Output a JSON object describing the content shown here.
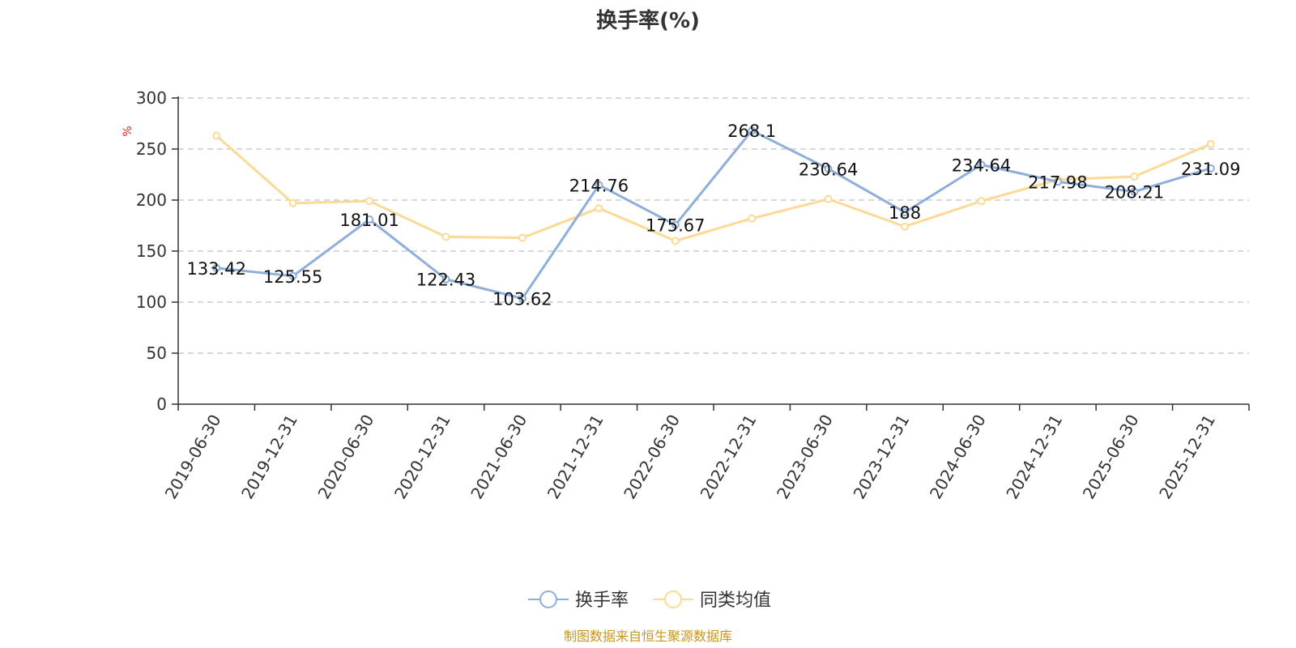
{
  "chart_data": {
    "type": "line",
    "title": "换手率(%)",
    "ylabel": "%",
    "ylim": [
      0,
      300
    ],
    "yticks": [
      0,
      50,
      100,
      150,
      200,
      250,
      300
    ],
    "grid": true,
    "legend_position": "bottom",
    "categories": [
      "2019-06-30",
      "2019-12-31",
      "2020-06-30",
      "2020-12-31",
      "2021-06-30",
      "2021-12-31",
      "2022-06-30",
      "2022-12-31",
      "2023-06-30",
      "2023-12-31",
      "2024-06-30",
      "2024-12-31",
      "2025-06-30",
      "2025-12-31"
    ],
    "series": [
      {
        "name": "换手率",
        "color": "#8eaedb",
        "labeled": true,
        "values": [
          133.42,
          125.55,
          181.01,
          122.43,
          103.62,
          214.76,
          175.67,
          268.1,
          230.64,
          188,
          234.64,
          217.98,
          208.21,
          231.09
        ],
        "labels": [
          "133.42",
          "125.55",
          "181.01",
          "122.43",
          "103.62",
          "214.76",
          "175.67",
          "268.1",
          "230.64",
          "188",
          "234.64",
          "217.98",
          "208.21",
          "231.09"
        ]
      },
      {
        "name": "同类均值",
        "color": "#fcd994",
        "labeled": false,
        "values": [
          263,
          197,
          199,
          164,
          163,
          192,
          160,
          182,
          201,
          174,
          199,
          220,
          223,
          255
        ]
      }
    ]
  },
  "source": "制图数据来自恒生聚源数据库"
}
